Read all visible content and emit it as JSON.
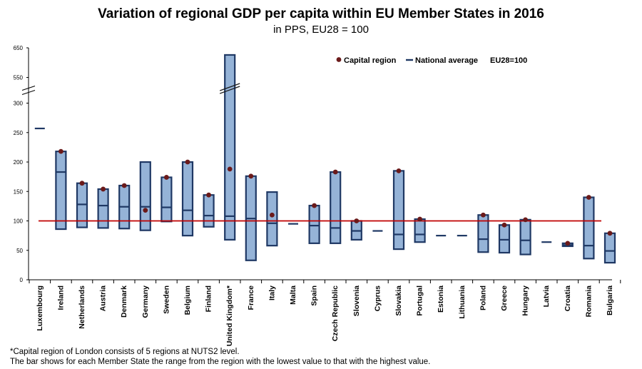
{
  "chart_data": {
    "type": "bar",
    "title": "Variation of regional GDP per capita within EU Member States in 2016",
    "subtitle": "in PPS, EU28 = 100",
    "reference_value": 100,
    "ylim": [
      0,
      650
    ],
    "axis_break": {
      "after": 300,
      "before": 550
    },
    "y_ticks": [
      0,
      50,
      100,
      150,
      200,
      250,
      300,
      550,
      650
    ],
    "categories": [
      "Luxembourg",
      "Ireland",
      "Netherlands",
      "Austria",
      "Denmark",
      "Germany",
      "Sweden",
      "Belgium",
      "Finland",
      "United Kingdom*",
      "France",
      "Italy",
      "Malta",
      "Spain",
      "Czech Republic",
      "Slovenia",
      "Cyprus",
      "Slovakia",
      "Portugal",
      "Estonia",
      "Lithuania",
      "Poland",
      "Greece",
      "Hungary",
      "Latvia",
      "Croatia",
      "Romania",
      "Bulgaria"
    ],
    "min": [
      257,
      86,
      89,
      88,
      87,
      84,
      99,
      75,
      90,
      68,
      33,
      58,
      95,
      62,
      62,
      68,
      83,
      52,
      64,
      75,
      75,
      47,
      46,
      43,
      64,
      57,
      36,
      29
    ],
    "max": [
      257,
      218,
      164,
      154,
      160,
      200,
      174,
      200,
      144,
      626,
      176,
      149,
      95,
      126,
      183,
      100,
      83,
      185,
      103,
      75,
      75,
      110,
      93,
      102,
      64,
      62,
      140,
      79
    ],
    "national": [
      257,
      183,
      128,
      126,
      124,
      124,
      123,
      118,
      109,
      108,
      104,
      96,
      95,
      92,
      88,
      83,
      83,
      77,
      77,
      75,
      75,
      69,
      68,
      67,
      64,
      59,
      58,
      49
    ],
    "capital": [
      null,
      218,
      164,
      154,
      160,
      118,
      174,
      200,
      144,
      188,
      176,
      110,
      null,
      126,
      183,
      100,
      null,
      185,
      103,
      null,
      null,
      110,
      93,
      102,
      null,
      62,
      140,
      79
    ],
    "legend": {
      "capital": "Capital region",
      "national": "National average",
      "eu": "EU28=100",
      "position": "top-right"
    },
    "colors": {
      "bar_fill": "#95b3d7",
      "bar_border": "#1f3864",
      "capital": "#6b1a1a",
      "eu_line": "#c00000"
    }
  },
  "footnotes": [
    "*Capital region of London consists of 5 regions at NUTS2 level.",
    "The bar shows for each Member State the range from the region with the lowest value to that with the highest value."
  ]
}
